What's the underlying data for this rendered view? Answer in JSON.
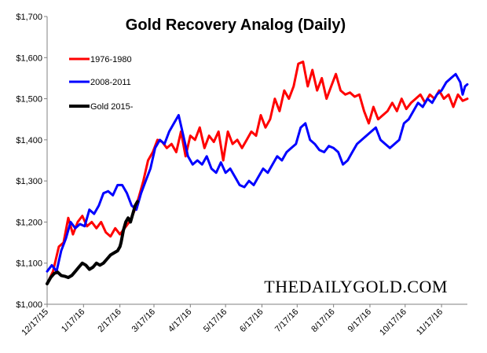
{
  "chart_data": {
    "type": "line",
    "title": "Gold Recovery Analog (Daily)",
    "xlabel": "",
    "ylabel": "",
    "ylim": [
      1000,
      1700
    ],
    "y_ticks": [
      1000,
      1100,
      1200,
      1300,
      1400,
      1500,
      1600,
      1700
    ],
    "y_tick_labels": [
      "$1,000",
      "$1,100",
      "$1,200",
      "$1,300",
      "$1,400",
      "$1,500",
      "$1,600",
      "$1,700"
    ],
    "x_tick_labels": [
      "12/17/15",
      "1/17/16",
      "2/17/16",
      "3/17/16",
      "4/17/16",
      "5/17/16",
      "6/17/16",
      "7/17/16",
      "8/17/16",
      "9/17/16",
      "10/17/16",
      "11/17/16"
    ],
    "x_tick_index": [
      0,
      31,
      62,
      91,
      122,
      152,
      183,
      213,
      244,
      275,
      305,
      336
    ],
    "x_max": 358,
    "grid": false,
    "legend_position": "top-left",
    "series": [
      {
        "name": "1976-1980",
        "color": "#ff0000",
        "points": [
          [
            0,
            1050
          ],
          [
            5,
            1080
          ],
          [
            10,
            1140
          ],
          [
            14,
            1150
          ],
          [
            18,
            1210
          ],
          [
            22,
            1170
          ],
          [
            26,
            1200
          ],
          [
            30,
            1215
          ],
          [
            34,
            1190
          ],
          [
            38,
            1200
          ],
          [
            42,
            1185
          ],
          [
            46,
            1200
          ],
          [
            50,
            1175
          ],
          [
            54,
            1165
          ],
          [
            58,
            1185
          ],
          [
            62,
            1170
          ],
          [
            66,
            1185
          ],
          [
            70,
            1200
          ],
          [
            74,
            1225
          ],
          [
            78,
            1260
          ],
          [
            82,
            1300
          ],
          [
            86,
            1350
          ],
          [
            90,
            1370
          ],
          [
            94,
            1400
          ],
          [
            98,
            1395
          ],
          [
            102,
            1380
          ],
          [
            106,
            1390
          ],
          [
            110,
            1370
          ],
          [
            114,
            1420
          ],
          [
            118,
            1360
          ],
          [
            122,
            1410
          ],
          [
            126,
            1400
          ],
          [
            130,
            1430
          ],
          [
            134,
            1380
          ],
          [
            138,
            1410
          ],
          [
            142,
            1395
          ],
          [
            146,
            1420
          ],
          [
            150,
            1350
          ],
          [
            154,
            1420
          ],
          [
            158,
            1390
          ],
          [
            162,
            1400
          ],
          [
            166,
            1380
          ],
          [
            170,
            1400
          ],
          [
            174,
            1420
          ],
          [
            178,
            1410
          ],
          [
            182,
            1460
          ],
          [
            186,
            1430
          ],
          [
            190,
            1450
          ],
          [
            194,
            1500
          ],
          [
            198,
            1470
          ],
          [
            202,
            1520
          ],
          [
            206,
            1500
          ],
          [
            210,
            1530
          ],
          [
            214,
            1585
          ],
          [
            218,
            1590
          ],
          [
            222,
            1530
          ],
          [
            226,
            1570
          ],
          [
            230,
            1520
          ],
          [
            234,
            1550
          ],
          [
            238,
            1500
          ],
          [
            242,
            1530
          ],
          [
            246,
            1560
          ],
          [
            250,
            1520
          ],
          [
            254,
            1510
          ],
          [
            258,
            1515
          ],
          [
            262,
            1505
          ],
          [
            266,
            1510
          ],
          [
            270,
            1470
          ],
          [
            274,
            1440
          ],
          [
            278,
            1480
          ],
          [
            282,
            1450
          ],
          [
            286,
            1460
          ],
          [
            290,
            1470
          ],
          [
            294,
            1490
          ],
          [
            298,
            1470
          ],
          [
            302,
            1500
          ],
          [
            306,
            1475
          ],
          [
            310,
            1490
          ],
          [
            314,
            1500
          ],
          [
            318,
            1510
          ],
          [
            322,
            1490
          ],
          [
            326,
            1510
          ],
          [
            330,
            1500
          ],
          [
            334,
            1520
          ],
          [
            338,
            1500
          ],
          [
            342,
            1510
          ],
          [
            346,
            1480
          ],
          [
            350,
            1510
          ],
          [
            354,
            1495
          ],
          [
            358,
            1500
          ]
        ]
      },
      {
        "name": "2008-2011",
        "color": "#0000ff",
        "points": [
          [
            0,
            1080
          ],
          [
            4,
            1095
          ],
          [
            8,
            1080
          ],
          [
            12,
            1130
          ],
          [
            16,
            1160
          ],
          [
            20,
            1200
          ],
          [
            24,
            1185
          ],
          [
            28,
            1195
          ],
          [
            32,
            1190
          ],
          [
            36,
            1230
          ],
          [
            40,
            1220
          ],
          [
            44,
            1240
          ],
          [
            48,
            1270
          ],
          [
            52,
            1275
          ],
          [
            56,
            1265
          ],
          [
            60,
            1290
          ],
          [
            64,
            1290
          ],
          [
            68,
            1270
          ],
          [
            72,
            1240
          ],
          [
            76,
            1230
          ],
          [
            80,
            1270
          ],
          [
            84,
            1300
          ],
          [
            88,
            1330
          ],
          [
            92,
            1380
          ],
          [
            96,
            1400
          ],
          [
            100,
            1390
          ],
          [
            104,
            1420
          ],
          [
            108,
            1440
          ],
          [
            112,
            1460
          ],
          [
            116,
            1410
          ],
          [
            120,
            1360
          ],
          [
            124,
            1340
          ],
          [
            128,
            1350
          ],
          [
            132,
            1340
          ],
          [
            136,
            1360
          ],
          [
            140,
            1330
          ],
          [
            144,
            1320
          ],
          [
            148,
            1345
          ],
          [
            152,
            1320
          ],
          [
            156,
            1330
          ],
          [
            160,
            1310
          ],
          [
            164,
            1290
          ],
          [
            168,
            1285
          ],
          [
            172,
            1300
          ],
          [
            176,
            1290
          ],
          [
            180,
            1310
          ],
          [
            184,
            1330
          ],
          [
            188,
            1320
          ],
          [
            192,
            1340
          ],
          [
            196,
            1360
          ],
          [
            200,
            1350
          ],
          [
            204,
            1370
          ],
          [
            208,
            1380
          ],
          [
            212,
            1390
          ],
          [
            216,
            1430
          ],
          [
            220,
            1440
          ],
          [
            224,
            1400
          ],
          [
            228,
            1390
          ],
          [
            232,
            1375
          ],
          [
            236,
            1370
          ],
          [
            240,
            1385
          ],
          [
            244,
            1380
          ],
          [
            248,
            1370
          ],
          [
            252,
            1340
          ],
          [
            256,
            1350
          ],
          [
            260,
            1370
          ],
          [
            264,
            1390
          ],
          [
            268,
            1400
          ],
          [
            272,
            1410
          ],
          [
            276,
            1420
          ],
          [
            280,
            1430
          ],
          [
            284,
            1400
          ],
          [
            288,
            1390
          ],
          [
            292,
            1380
          ],
          [
            296,
            1390
          ],
          [
            300,
            1400
          ],
          [
            304,
            1440
          ],
          [
            308,
            1450
          ],
          [
            312,
            1470
          ],
          [
            316,
            1490
          ],
          [
            320,
            1480
          ],
          [
            324,
            1500
          ],
          [
            328,
            1490
          ],
          [
            332,
            1510
          ],
          [
            336,
            1520
          ],
          [
            340,
            1540
          ],
          [
            344,
            1550
          ],
          [
            348,
            1560
          ],
          [
            352,
            1540
          ],
          [
            354,
            1510
          ],
          [
            356,
            1530
          ],
          [
            358,
            1535
          ]
        ]
      },
      {
        "name": "Gold 2015-",
        "color": "#000000",
        "points": [
          [
            0,
            1050
          ],
          [
            3,
            1065
          ],
          [
            6,
            1075
          ],
          [
            9,
            1078
          ],
          [
            12,
            1070
          ],
          [
            15,
            1068
          ],
          [
            18,
            1065
          ],
          [
            21,
            1070
          ],
          [
            24,
            1080
          ],
          [
            27,
            1090
          ],
          [
            30,
            1100
          ],
          [
            33,
            1095
          ],
          [
            36,
            1085
          ],
          [
            39,
            1090
          ],
          [
            42,
            1100
          ],
          [
            45,
            1095
          ],
          [
            48,
            1100
          ],
          [
            51,
            1110
          ],
          [
            54,
            1120
          ],
          [
            57,
            1125
          ],
          [
            60,
            1130
          ],
          [
            62,
            1140
          ],
          [
            63,
            1150
          ],
          [
            65,
            1180
          ],
          [
            67,
            1200
          ],
          [
            69,
            1210
          ],
          [
            71,
            1200
          ],
          [
            73,
            1220
          ],
          [
            75,
            1240
          ],
          [
            77,
            1250
          ]
        ]
      }
    ]
  },
  "brand": {
    "text": "THEDAILYGOLD.COM"
  }
}
